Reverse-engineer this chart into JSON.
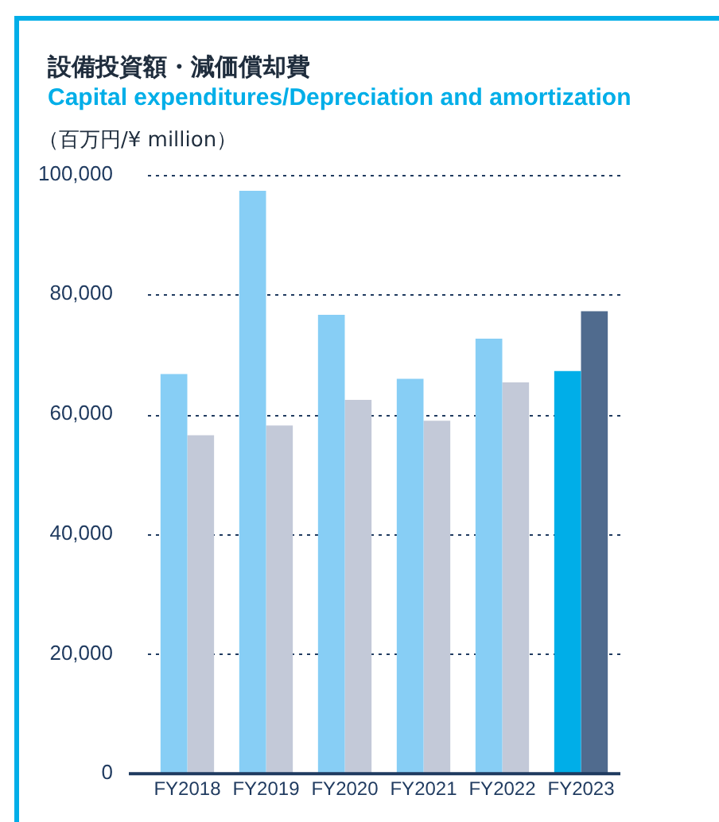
{
  "chart_data": {
    "type": "bar",
    "title": "設備投資額・減価償却費",
    "subtitle": "Capital expenditures/Depreciation and amortization",
    "ylabel": "（百万円/¥ million）",
    "categories": [
      "FY2018",
      "FY2019",
      "FY2020",
      "FY2021",
      "FY2022",
      "FY2023"
    ],
    "series": [
      {
        "colors": [
          "#87cef5",
          "#87cef5",
          "#87cef5",
          "#87cef5",
          "#87cef5",
          "#00aee8"
        ],
        "values": [
          66700,
          97300,
          76600,
          65900,
          72600,
          67200
        ]
      },
      {
        "colors": [
          "#c3c9d8",
          "#c3c9d8",
          "#c3c9d8",
          "#c3c9d8",
          "#c3c9d8",
          "#506b8e"
        ],
        "values": [
          56500,
          58100,
          62400,
          58900,
          65300,
          77200
        ]
      }
    ],
    "ylim": [
      0,
      100000
    ],
    "yticks": [
      0,
      {
        "value": 20000,
        "label": "20,000"
      },
      {
        "value": 40000,
        "label": "40,000"
      },
      {
        "value": 60000,
        "label": "60,000"
      },
      {
        "value": 80000,
        "label": "80,000"
      },
      {
        "value": 100000,
        "label": "100,000"
      }
    ],
    "grid": "y",
    "legend": false
  }
}
